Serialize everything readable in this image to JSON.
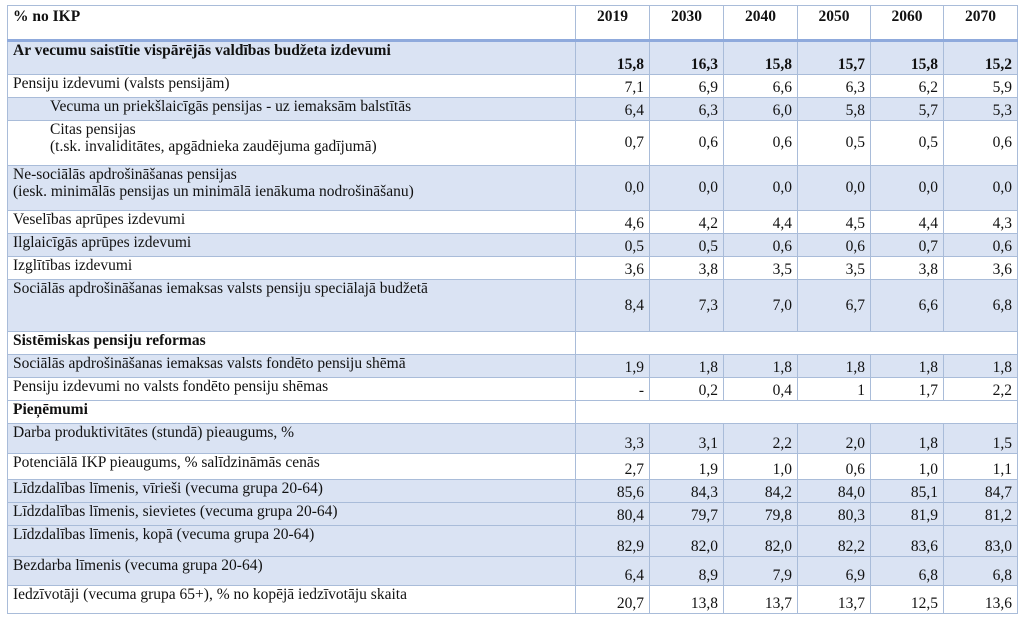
{
  "header": {
    "unit_label": "% no IKP",
    "years": [
      "2019",
      "2030",
      "2040",
      "2050",
      "2060",
      "2070"
    ]
  },
  "rows": [
    {
      "label": "Ar vecumu saistītie vispārējās valdības budžeta izdevumi",
      "values": [
        "15,8",
        "16,3",
        "15,8",
        "15,7",
        "15,8",
        "15,2"
      ]
    },
    {
      "label": "Pensiju izdevumi (valsts pensijām)",
      "values": [
        "7,1",
        "6,9",
        "6,6",
        "6,3",
        "6,2",
        "5,9"
      ]
    },
    {
      "label": "Vecuma un priekšlaicīgās pensijas - uz iemaksām balstītās",
      "values": [
        "6,4",
        "6,3",
        "6,0",
        "5,8",
        "5,7",
        "5,3"
      ]
    },
    {
      "label_line1": "Citas pensijas",
      "label_line2": "(t.sk. invaliditātes, apgādnieka zaudējuma gadījumā)",
      "values": [
        "0,7",
        "0,6",
        "0,6",
        "0,5",
        "0,5",
        "0,6"
      ]
    },
    {
      "label_line1": "Ne-sociālās apdrošināšanas pensijas",
      "label_line2": "(iesk. minimālās pensijas un minimālā ienākuma nodrošināšanu)",
      "values": [
        "0,0",
        "0,0",
        "0,0",
        "0,0",
        "0,0",
        "0,0"
      ]
    },
    {
      "label": "Veselības aprūpes izdevumi",
      "values": [
        "4,6",
        "4,2",
        "4,4",
        "4,5",
        "4,4",
        "4,3"
      ]
    },
    {
      "label": "Ilglaicīgās aprūpes izdevumi",
      "values": [
        "0,5",
        "0,5",
        "0,6",
        "0,6",
        "0,7",
        "0,6"
      ]
    },
    {
      "label": "Izglītības izdevumi",
      "values": [
        "3,6",
        "3,8",
        "3,5",
        "3,5",
        "3,8",
        "3,6"
      ]
    },
    {
      "label": "Sociālās apdrošināšanas iemaksas valsts pensiju speciālajā budžetā",
      "values": [
        "8,4",
        "7,3",
        "7,0",
        "6,7",
        "6,6",
        "6,8"
      ]
    },
    {
      "section": "Sistēmiskas pensiju reformas"
    },
    {
      "label": "Sociālās apdrošināšanas iemaksas valsts fondēto pensiju shēmā",
      "values": [
        "1,9",
        "1,8",
        "1,8",
        "1,8",
        "1,8",
        "1,8"
      ]
    },
    {
      "label": "Pensiju izdevumi no valsts fondēto pensiju shēmas",
      "values": [
        "-",
        "0,2",
        "0,4",
        "1",
        "1,7",
        "2,2"
      ]
    },
    {
      "section": "Pieņēmumi"
    },
    {
      "label": "Darba produktivitātes (stundā) pieaugums, %",
      "values": [
        "3,3",
        "3,1",
        "2,2",
        "2,0",
        "1,8",
        "1,5"
      ]
    },
    {
      "label": "Potenciālā IKP pieaugums, % salīdzināmās cenās",
      "values": [
        "2,7",
        "1,9",
        "1,0",
        "0,6",
        "1,0",
        "1,1"
      ]
    },
    {
      "label": "Līdzdalības līmenis, vīrieši (vecuma grupa 20-64)",
      "values": [
        "85,6",
        "84,3",
        "84,2",
        "84,0",
        "85,1",
        "84,7"
      ]
    },
    {
      "label": "Līdzdalības līmenis, sievietes (vecuma grupa 20-64)",
      "values": [
        "80,4",
        "79,7",
        "79,8",
        "80,3",
        "81,9",
        "81,2"
      ]
    },
    {
      "label": "Līdzdalības līmenis, kopā (vecuma grupa 20-64)",
      "values": [
        "82,9",
        "82,0",
        "82,0",
        "82,2",
        "83,6",
        "83,0"
      ]
    },
    {
      "label": "Bezdarba līmenis (vecuma grupa 20-64)",
      "values": [
        "6,4",
        "8,9",
        "7,9",
        "6,9",
        "6,8",
        "6,8"
      ]
    },
    {
      "label": "Iedzīvotāji (vecuma grupa 65+), % no kopējā iedzīvotāju skaita",
      "values": [
        "20,7",
        "13,8",
        "13,7",
        "13,7",
        "12,5",
        "13,6"
      ]
    }
  ]
}
